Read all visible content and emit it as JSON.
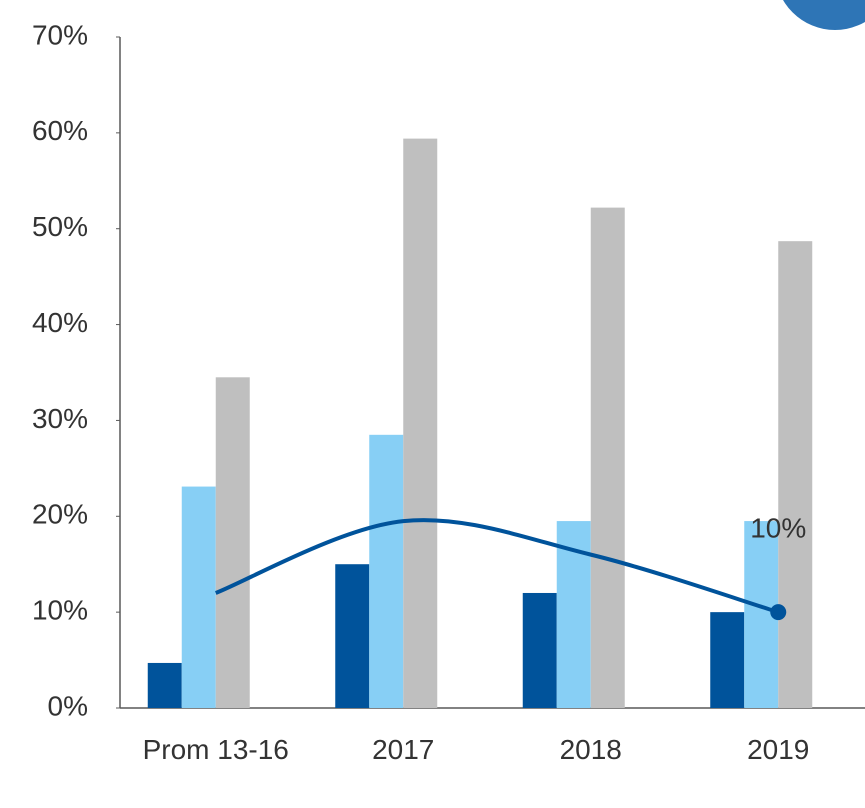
{
  "chart_data": {
    "type": "bar",
    "categories": [
      "Prom 13-16",
      "2017",
      "2018",
      "2019"
    ],
    "series": [
      {
        "color": "#00539b",
        "values": [
          4.7,
          15.0,
          12.0,
          10.0
        ]
      },
      {
        "color": "#87cff5",
        "values": [
          23.1,
          28.5,
          19.5,
          19.5
        ]
      },
      {
        "color": "#bfbfbf",
        "values": [
          34.5,
          59.4,
          52.2,
          48.7
        ]
      },
      {
        "type": "line",
        "color": "#00539b",
        "values": [
          12.0,
          19.5,
          16.0,
          10.0
        ],
        "value_labels": [
          null,
          null,
          null,
          "10%"
        ]
      }
    ],
    "ylim": [
      0,
      70
    ],
    "yticks": [
      {
        "value": 0,
        "label": "0%"
      },
      {
        "value": 10,
        "label": "10%"
      },
      {
        "value": 20,
        "label": "20%"
      },
      {
        "value": 30,
        "label": "30%"
      },
      {
        "value": 40,
        "label": "40%"
      },
      {
        "value": 50,
        "label": "50%"
      },
      {
        "value": 60,
        "label": "60%"
      },
      {
        "value": 70,
        "label": "70%"
      }
    ],
    "grid": false
  }
}
